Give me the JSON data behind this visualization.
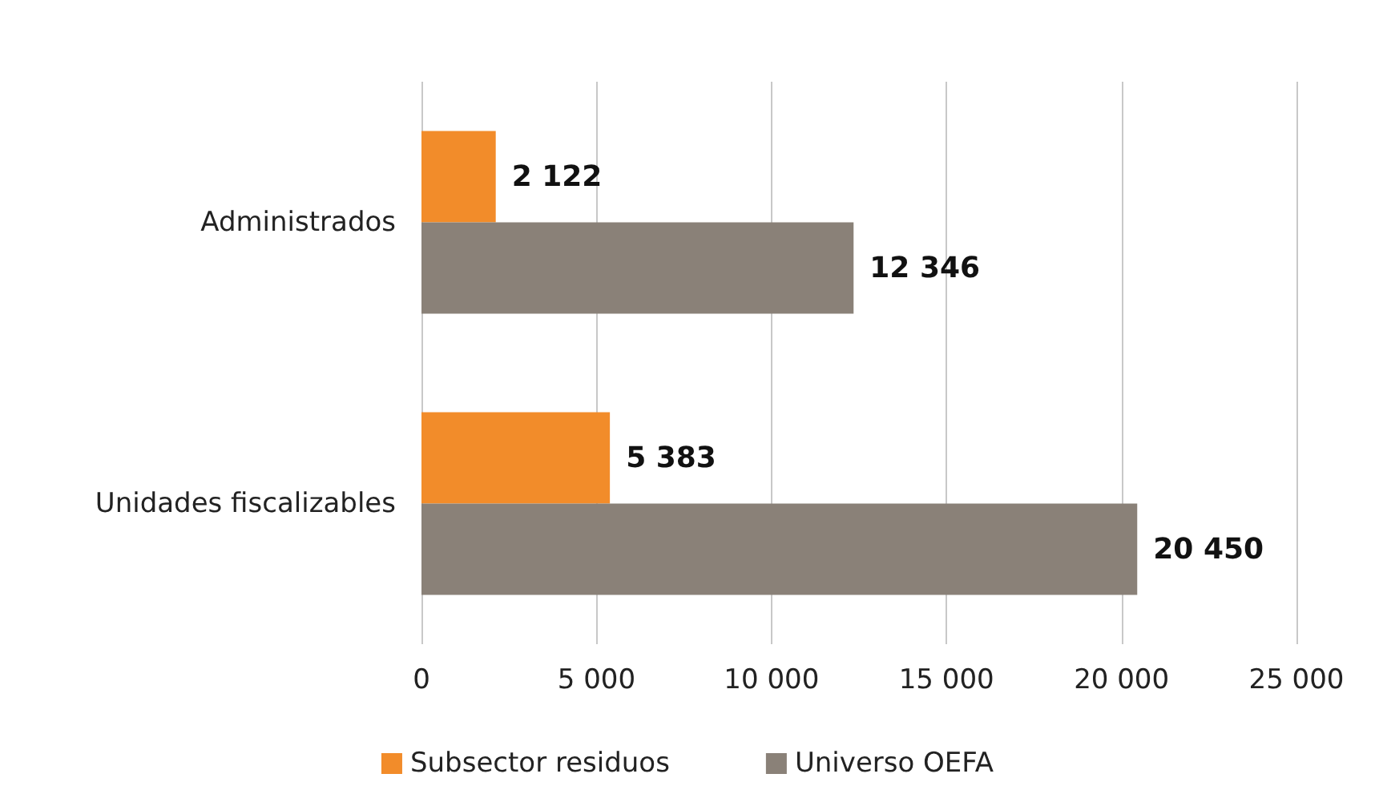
{
  "chart_data": {
    "type": "bar",
    "orientation": "horizontal",
    "categories": [
      "Administrados",
      "Unidades fiscalizables"
    ],
    "series": [
      {
        "name": "Subsector residuos",
        "color": "#f28c2a",
        "values": [
          2122,
          5383
        ]
      },
      {
        "name": "Universo OEFA",
        "color": "#8a8178",
        "values": [
          12346,
          20450
        ]
      }
    ],
    "xlim": [
      0,
      25000
    ],
    "xticks": [
      {
        "value": 0,
        "label": "0"
      },
      {
        "value": 5000,
        "label": "5 000"
      },
      {
        "value": 10000,
        "label": "10 000"
      },
      {
        "value": 15000,
        "label": "15 000"
      },
      {
        "value": 20000,
        "label": "20 000"
      },
      {
        "value": 25000,
        "label": "25 000"
      }
    ],
    "grid": "x",
    "legend": "bottom",
    "data_labels": true
  }
}
